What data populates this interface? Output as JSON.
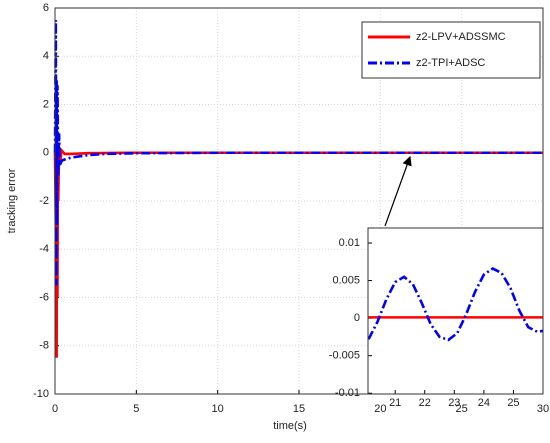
{
  "chart_data": [
    {
      "type": "line",
      "xlabel": "time(s)",
      "ylabel": "tracking error",
      "grid": true,
      "legend": "northeast",
      "xlim": [
        0,
        30
      ],
      "ylim": [
        -10,
        6
      ],
      "xticks": [
        0,
        5,
        10,
        15,
        20,
        25,
        30
      ],
      "yticks": [
        -10,
        -8,
        -6,
        -4,
        -2,
        0,
        2,
        4,
        6
      ],
      "series": [
        {
          "name": "z2-LPV+ADSSMC",
          "color": "#ff0000",
          "linestyle": "solid",
          "x": [
            0,
            0.05,
            0.08,
            0.1,
            0.12,
            0.15,
            0.18,
            0.2,
            0.25,
            0.3,
            0.4,
            0.6,
            1,
            2,
            5,
            10,
            15,
            20,
            25,
            30
          ],
          "values": [
            0,
            -3,
            1,
            -8.5,
            0.5,
            -6,
            0.3,
            -2,
            0.2,
            -0.5,
            0.1,
            -0.05,
            -0.05,
            -0.02,
            0,
            0,
            0,
            0,
            0,
            0
          ]
        },
        {
          "name": "z2-TPI+ADSC",
          "color": "#0000ff",
          "linestyle": "dashdot",
          "x": [
            0,
            0.05,
            0.08,
            0.1,
            0.12,
            0.15,
            0.2,
            0.25,
            0.3,
            0.4,
            0.5,
            1,
            2,
            3,
            5,
            10,
            20,
            30
          ],
          "values": [
            0,
            5.5,
            -5.5,
            3,
            -3,
            2.8,
            -1,
            0.8,
            -0.5,
            -0.35,
            -0.3,
            -0.2,
            -0.1,
            -0.05,
            -0.02,
            0,
            0,
            0
          ]
        }
      ]
    },
    {
      "type": "line",
      "grid": false,
      "xlim": [
        20.08,
        26
      ],
      "ylim": [
        -0.0101,
        0.012
      ],
      "xticks": [
        21,
        22,
        23,
        24,
        25
      ],
      "yticks": [
        -0.01,
        -0.005,
        0,
        0.005,
        0.01
      ],
      "series": [
        {
          "color": "#ff0000",
          "linestyle": "solid",
          "x": [
            20.08,
            26
          ],
          "values": [
            0.0001,
            0.0001
          ]
        },
        {
          "color": "#0000ff",
          "linestyle": "dashdot",
          "x": [
            20.1,
            20.4,
            20.7,
            21.0,
            21.3,
            21.6,
            21.9,
            22.2,
            22.5,
            22.8,
            23.1,
            23.4,
            23.7,
            24.0,
            24.3,
            24.6,
            24.9,
            25.2,
            25.5,
            25.8,
            26.0
          ],
          "values": [
            -0.0028,
            -0.0005,
            0.0025,
            0.0048,
            0.0055,
            0.0045,
            0.002,
            -0.0008,
            -0.0025,
            -0.0029,
            -0.002,
            0.0005,
            0.0035,
            0.0058,
            0.0066,
            0.006,
            0.004,
            0.001,
            -0.0012,
            -0.0018,
            -0.0017
          ]
        }
      ]
    }
  ]
}
